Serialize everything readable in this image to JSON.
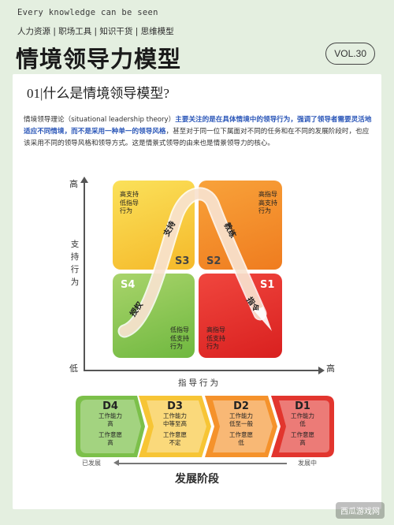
{
  "header": {
    "tagline": "Every knowledge can be seen",
    "categories": "人力资源 | 职场工具 | 知识干货 | 思维模型",
    "title": "情境领导力模型",
    "vol": "VOL.30"
  },
  "section": {
    "heading": "01|什么是情境领导模型?",
    "intro_part1": "情境领导理论（situational leadership theory）",
    "intro_highlight1": "主要关注的是在具体情境中的领导行为，强调了领导者需要灵活地适应不同情境，而不是采用一种单一的领导风格",
    "intro_part2": "，甚至对于同一位下属面对不同的任务和在不同的发展阶段时，也应该采用不同的领导风格和领导方式。这是情景式领导的由来也是情景领导力的核心。"
  },
  "chart": {
    "y_high": "高",
    "y_low": "低",
    "x_high": "高",
    "y_title": "支持行为",
    "x_title": "指导行为",
    "quadrants": {
      "s3": {
        "label": "S3",
        "desc": [
          "高支持",
          "低指导",
          "行为"
        ],
        "style": "支持"
      },
      "s2": {
        "label": "S2",
        "desc": [
          "高指导",
          "高支持",
          "行为"
        ],
        "style": "教练"
      },
      "s4": {
        "label": "S4",
        "desc": [
          "低指导",
          "低支持",
          "行为"
        ],
        "style": "授权"
      },
      "s1": {
        "label": "S1",
        "desc": [
          "高指导",
          "低支持",
          "行为"
        ],
        "style": "指令"
      }
    }
  },
  "stages": [
    {
      "code": "D4",
      "lines1": [
        "工作能力",
        "高"
      ],
      "lines2": [
        "工作意愿",
        "高"
      ],
      "color": "#7cc04a"
    },
    {
      "code": "D3",
      "lines1": [
        "工作能力",
        "中等至高"
      ],
      "lines2": [
        "工作意愿",
        "不定"
      ],
      "color": "#f7c535"
    },
    {
      "code": "D2",
      "lines1": [
        "工作能力",
        "低至一般"
      ],
      "lines2": [
        "工作意愿",
        "低"
      ],
      "color": "#f5922b"
    },
    {
      "code": "D1",
      "lines1": [
        "工作能力",
        "低"
      ],
      "lines2": [
        "工作意愿",
        "高"
      ],
      "color": "#e2352e"
    }
  ],
  "development": {
    "left": "已发展",
    "right": "发展中",
    "title": "发展阶段"
  },
  "watermark": "西瓜游戏网"
}
